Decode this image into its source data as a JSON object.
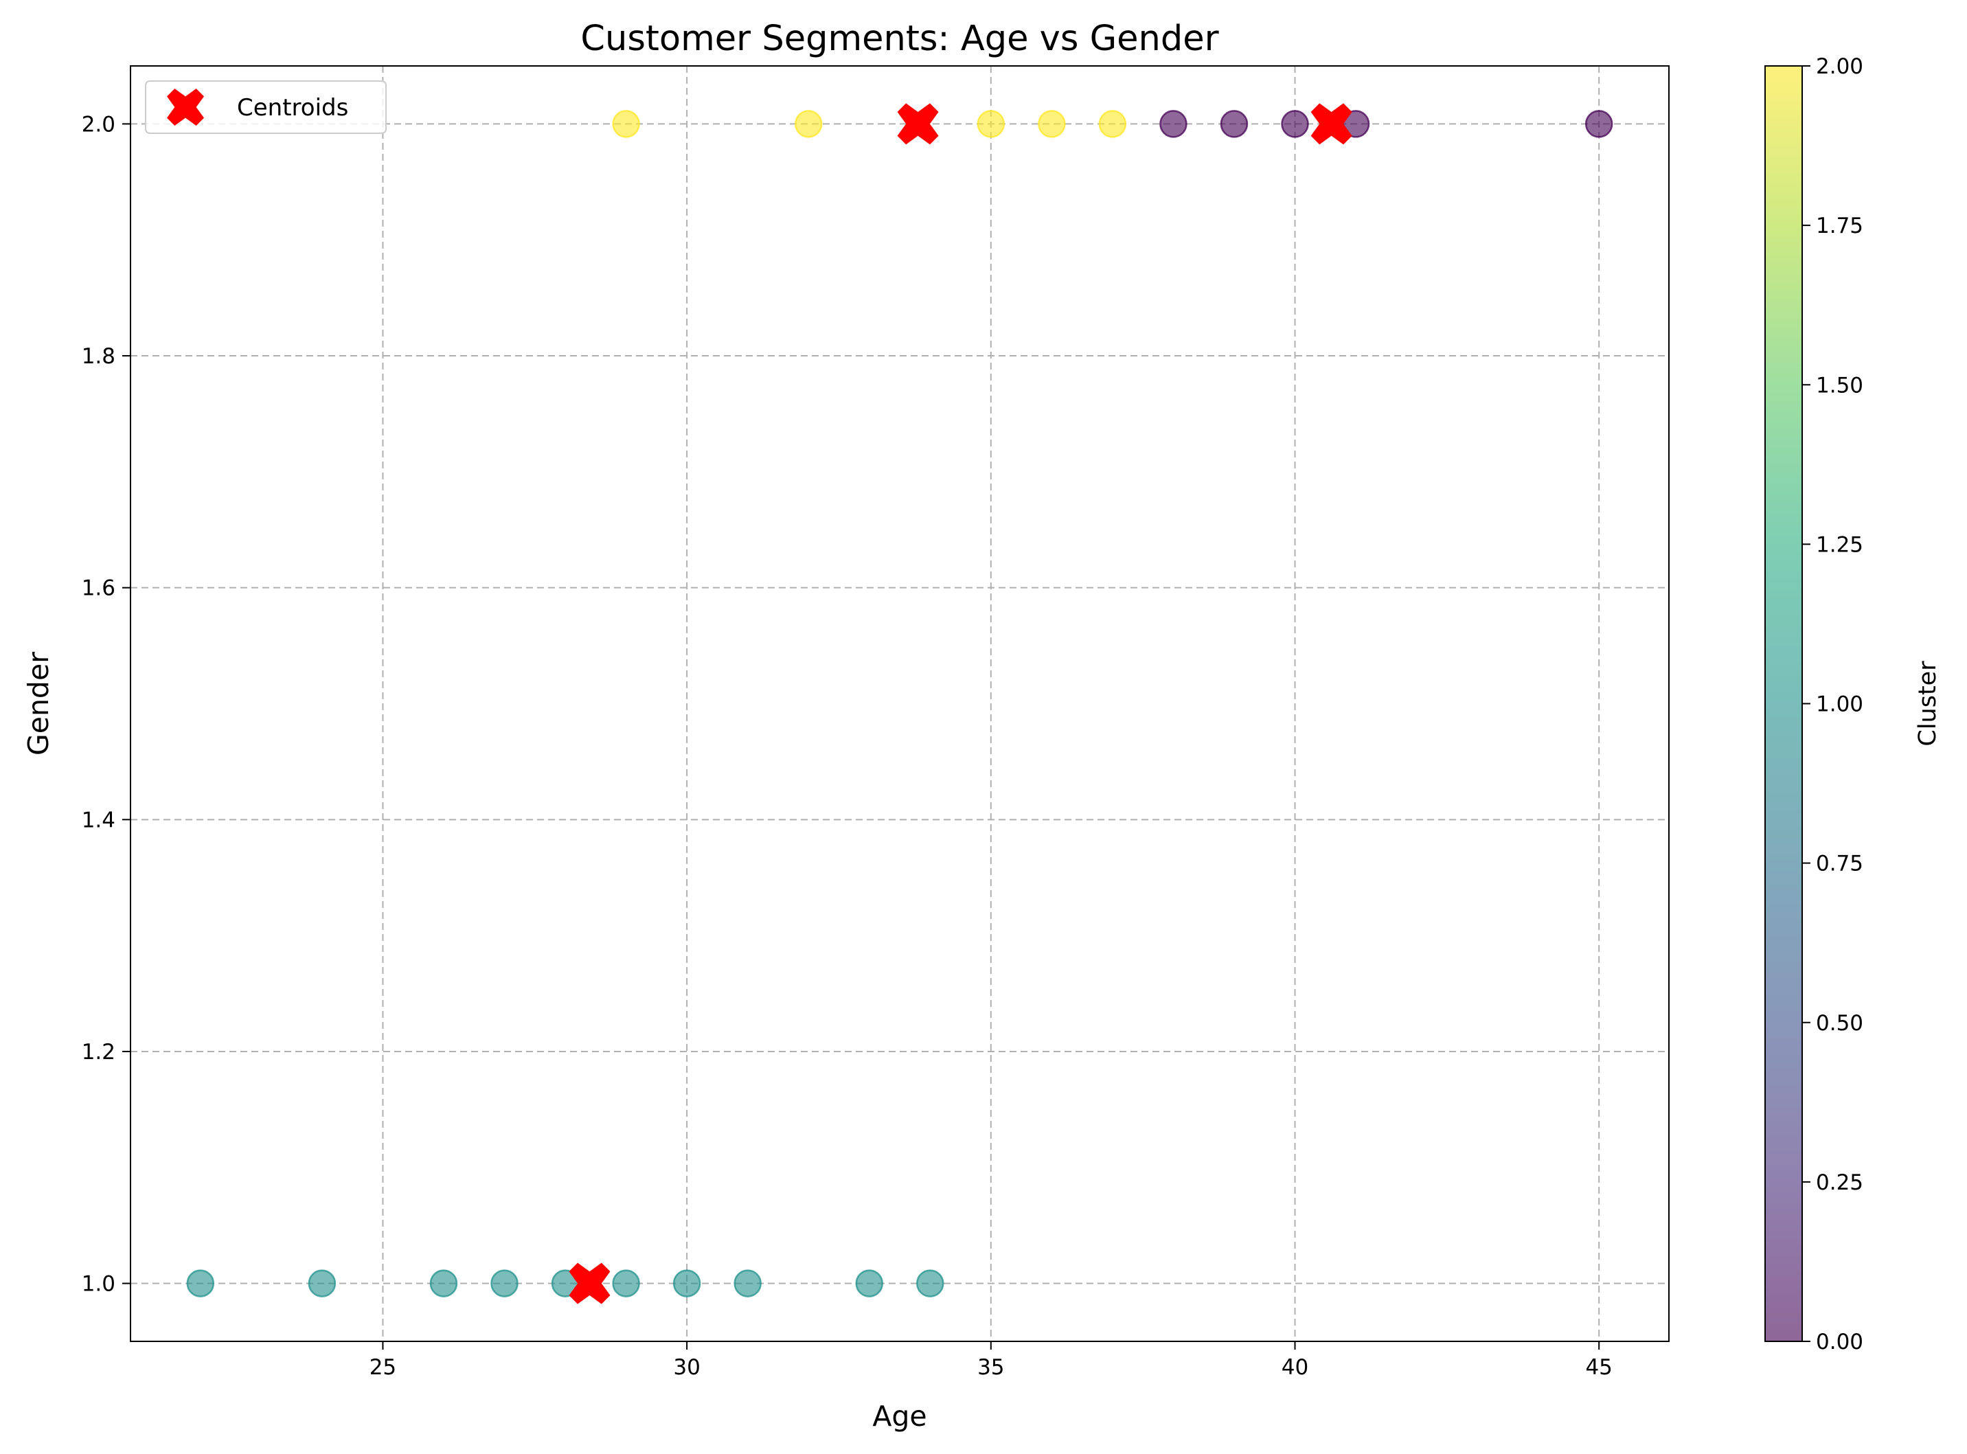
{
  "chart_data": {
    "type": "scatter",
    "title": "Customer Segments: Age vs Gender",
    "xlabel": "Age",
    "ylabel": "Gender",
    "xlim": [
      20.85,
      46.15
    ],
    "ylim": [
      0.95,
      2.05
    ],
    "xticks": [
      25,
      30,
      35,
      40,
      45
    ],
    "xtick_labels": [
      "25",
      "30",
      "35",
      "40",
      "45"
    ],
    "yticks": [
      1.0,
      1.2,
      1.4,
      1.6,
      1.8,
      2.0
    ],
    "ytick_labels": [
      "1.0",
      "1.2",
      "1.4",
      "1.6",
      "1.8",
      "2.0"
    ],
    "grid": true,
    "legend_position": "top-left",
    "legend": [
      {
        "label": "Centroids",
        "marker": "X",
        "color": "#ff0000"
      }
    ],
    "points": [
      {
        "x": 22,
        "y": 1,
        "cluster": 1
      },
      {
        "x": 24,
        "y": 1,
        "cluster": 1
      },
      {
        "x": 26,
        "y": 1,
        "cluster": 1
      },
      {
        "x": 27,
        "y": 1,
        "cluster": 1
      },
      {
        "x": 28,
        "y": 1,
        "cluster": 1
      },
      {
        "x": 29,
        "y": 1,
        "cluster": 1
      },
      {
        "x": 30,
        "y": 1,
        "cluster": 1
      },
      {
        "x": 31,
        "y": 1,
        "cluster": 1
      },
      {
        "x": 33,
        "y": 1,
        "cluster": 1
      },
      {
        "x": 34,
        "y": 1,
        "cluster": 1
      },
      {
        "x": 29,
        "y": 2,
        "cluster": 2
      },
      {
        "x": 32,
        "y": 2,
        "cluster": 2
      },
      {
        "x": 35,
        "y": 2,
        "cluster": 2
      },
      {
        "x": 36,
        "y": 2,
        "cluster": 2
      },
      {
        "x": 37,
        "y": 2,
        "cluster": 2
      },
      {
        "x": 38,
        "y": 2,
        "cluster": 0
      },
      {
        "x": 39,
        "y": 2,
        "cluster": 0
      },
      {
        "x": 40,
        "y": 2,
        "cluster": 0
      },
      {
        "x": 41,
        "y": 2,
        "cluster": 0
      },
      {
        "x": 45,
        "y": 2,
        "cluster": 0
      }
    ],
    "centroids": [
      {
        "x": 28.4,
        "y": 1.0
      },
      {
        "x": 33.8,
        "y": 2.0
      },
      {
        "x": 40.6,
        "y": 2.0
      }
    ],
    "cluster_colors": {
      "0": "#440154",
      "1": "#21918c",
      "2": "#fde725"
    },
    "point_alpha": 0.6,
    "centroid_color": "#ff0000",
    "colorbar": {
      "label": "Cluster",
      "range": [
        0,
        2
      ],
      "ticks": [
        0,
        0.25,
        0.5,
        0.75,
        1.0,
        1.25,
        1.5,
        1.75,
        2.0
      ],
      "tick_labels": [
        "0.00",
        "0.25",
        "0.50",
        "0.75",
        "1.00",
        "1.25",
        "1.50",
        "1.75",
        "2.00"
      ],
      "colormap": "viridis"
    }
  }
}
